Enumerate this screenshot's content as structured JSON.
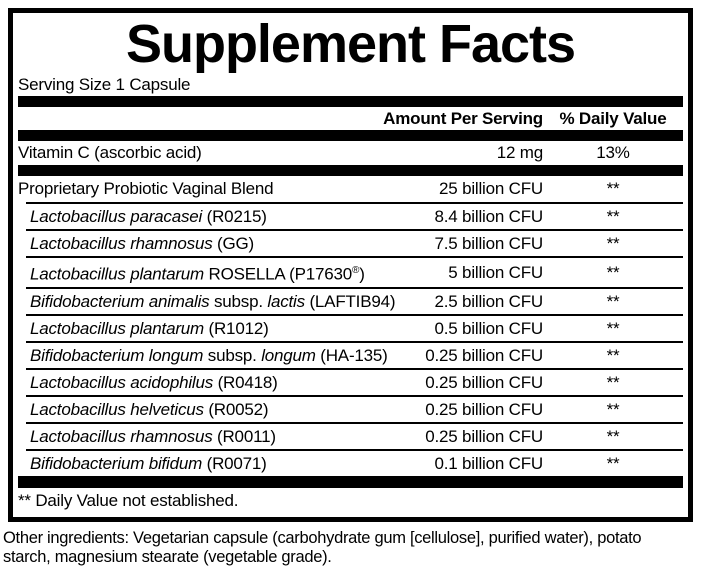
{
  "colors": {
    "ink": "#000000",
    "background": "#ffffff"
  },
  "title": "Supplement Facts",
  "serving_size": "Serving Size 1 Capsule",
  "columns": {
    "amount": "Amount Per Serving",
    "daily_value": "% Daily Value"
  },
  "vitamin_row": {
    "name": "Vitamin C (ascorbic acid)",
    "amount": "12 mg",
    "dv": "13%"
  },
  "blend_row": {
    "name": "Proprietary Probiotic Vaginal Blend",
    "amount": "25 billion CFU",
    "dv": "**"
  },
  "strain_rows": [
    {
      "name": [
        {
          "t": "Lactobacillus paracasei",
          "i": true
        },
        {
          "t": " (R0215)"
        }
      ],
      "amount": "8.4 billion CFU",
      "dv": "**"
    },
    {
      "name": [
        {
          "t": "Lactobacillus rhamnosus",
          "i": true
        },
        {
          "t": " (GG)"
        }
      ],
      "amount": "7.5 billion CFU",
      "dv": "**"
    },
    {
      "name": [
        {
          "t": "Lactobacillus plantarum",
          "i": true
        },
        {
          "t": " ROSELLA (P17630"
        },
        {
          "t": "®",
          "sup": true
        },
        {
          "t": ")"
        }
      ],
      "amount": "5 billion CFU",
      "dv": "**"
    },
    {
      "name": [
        {
          "t": "Bifidobacterium animalis",
          "i": true
        },
        {
          "t": " subsp. "
        },
        {
          "t": "lactis",
          "i": true
        },
        {
          "t": " (LAFTIB94)"
        }
      ],
      "amount": "2.5 billion CFU",
      "dv": "**"
    },
    {
      "name": [
        {
          "t": "Lactobacillus plantarum",
          "i": true
        },
        {
          "t": " (R1012)"
        }
      ],
      "amount": "0.5 billion CFU",
      "dv": "**"
    },
    {
      "name": [
        {
          "t": "Bifidobacterium longum",
          "i": true
        },
        {
          "t": " subsp. "
        },
        {
          "t": "longum",
          "i": true
        },
        {
          "t": " (HA-135)"
        }
      ],
      "amount": "0.25 billion CFU",
      "dv": "**"
    },
    {
      "name": [
        {
          "t": "Lactobacillus acidophilus",
          "i": true
        },
        {
          "t": " (R0418)"
        }
      ],
      "amount": "0.25 billion CFU",
      "dv": "**"
    },
    {
      "name": [
        {
          "t": "Lactobacillus helveticus",
          "i": true
        },
        {
          "t": " (R0052)"
        }
      ],
      "amount": "0.25 billion CFU",
      "dv": "**"
    },
    {
      "name": [
        {
          "t": "Lactobacillus rhamnosus",
          "i": true
        },
        {
          "t": " (R0011)"
        }
      ],
      "amount": "0.25 billion CFU",
      "dv": "**"
    },
    {
      "name": [
        {
          "t": "Bifidobacterium bifidum",
          "i": true
        },
        {
          "t": " (R0071)"
        }
      ],
      "amount": "0.1 billion CFU",
      "dv": "**"
    }
  ],
  "footnote": "** Daily Value not established.",
  "other_ingredients_lines": [
    "Other ingredients: Vegetarian capsule (carbohydrate gum [cellulose], purified water), potato",
    "starch, magnesium stearate (vegetable grade)."
  ]
}
